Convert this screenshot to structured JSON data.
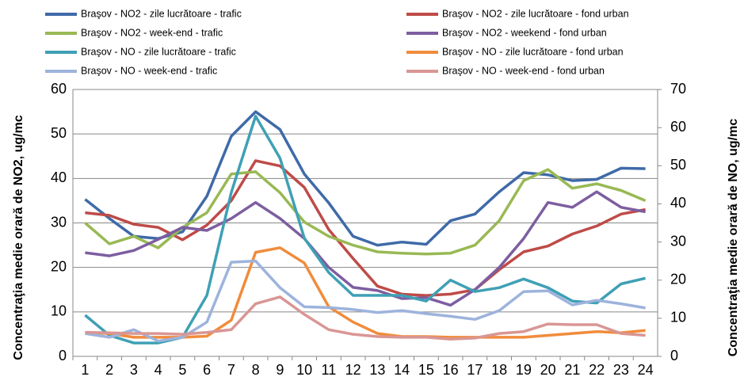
{
  "chart_data": {
    "type": "line",
    "categories": [
      "1",
      "2",
      "3",
      "4",
      "5",
      "6",
      "7",
      "8",
      "9",
      "10",
      "11",
      "12",
      "13",
      "14",
      "15",
      "16",
      "17",
      "18",
      "19",
      "20",
      "21",
      "22",
      "23",
      "24"
    ],
    "ylabel": "Concentraţia medie orară de NO2, ug/mc",
    "y2label": "Concentraţia medie orară de NO, ug/mc",
    "ylim": [
      0,
      60
    ],
    "yticks": [
      0,
      10,
      20,
      30,
      40,
      50,
      60
    ],
    "y2lim": [
      0,
      70
    ],
    "y2ticks": [
      0,
      10,
      20,
      30,
      40,
      50,
      60,
      70
    ],
    "grid": true,
    "series": [
      {
        "name": "Braşov - NO2 - zile lucrătoare - trafic",
        "color": "#3f6aa8",
        "values": [
          35.3,
          31,
          27,
          26.5,
          28,
          36,
          49.5,
          55,
          51,
          41,
          34.5,
          27,
          25,
          25.7,
          25.2,
          30.5,
          32,
          37,
          41.3,
          40.8,
          39.5,
          39.8,
          42.3,
          42.2
        ]
      },
      {
        "name": "Braşov - NO2 - zile lucrătoare - fond urban",
        "color": "#be4b48",
        "values": [
          32.3,
          31.7,
          29.7,
          29,
          26.2,
          29.5,
          35,
          44,
          42.8,
          38,
          28.5,
          22,
          15.8,
          14,
          13.7,
          14,
          15,
          19.5,
          23.5,
          24.8,
          27.5,
          29.3,
          32,
          33
        ]
      },
      {
        "name": "Braşov - NO2 - week-end - trafic",
        "color": "#98b954",
        "values": [
          30,
          25.3,
          27,
          24.4,
          29,
          32.3,
          41,
          41.5,
          36.8,
          30.2,
          27,
          25,
          23.5,
          23.2,
          23,
          23.2,
          25,
          30.5,
          39.5,
          42,
          37.8,
          38.8,
          37.3,
          35
        ]
      },
      {
        "name": "Braşov - NO2 - weekend - fond urban",
        "color": "#7d5ea0",
        "values": [
          23.3,
          22.6,
          23.8,
          26.3,
          29,
          28.3,
          31,
          34.6,
          31,
          26.5,
          20,
          15.5,
          14.8,
          13,
          13.2,
          11.5,
          15,
          20,
          26.5,
          34.6,
          33.5,
          37,
          33.5,
          32.5
        ]
      },
      {
        "name": "Braşov - NO - zile lucrătoare - trafic",
        "color": "#3fa0b5",
        "axis": "y2",
        "values": [
          10.8,
          5.5,
          3.5,
          3.5,
          5,
          16,
          43,
          63,
          52,
          31,
          22,
          16,
          16,
          16,
          14.5,
          20,
          17,
          18,
          20.3,
          18,
          14.5,
          14,
          19,
          20.5
        ]
      },
      {
        "name": "Braşov - NO - zile lucrătoare - fond urban",
        "color": "#f08c3c",
        "axis": "y2",
        "values": [
          6.3,
          6,
          5,
          5,
          5,
          5.3,
          9.5,
          27.3,
          28.5,
          24.5,
          13,
          9,
          6,
          5.2,
          5.2,
          5,
          5,
          5,
          5,
          5.5,
          6,
          6.5,
          6.2,
          6.8
        ]
      },
      {
        "name": "Braşov - NO - week-end - trafic",
        "color": "#9db3dc",
        "axis": "y2",
        "values": [
          6,
          5,
          7,
          4,
          5,
          9,
          24.7,
          25,
          18,
          13,
          12.8,
          12.3,
          11.5,
          12,
          11.2,
          10.5,
          9.7,
          12,
          17,
          17.2,
          13.5,
          14.7,
          13.8,
          12.7
        ]
      },
      {
        "name": "Braşov - NO - week-end - fond urban",
        "color": "#d99694",
        "axis": "y2",
        "values": [
          6.3,
          6.2,
          6,
          6,
          5.8,
          6.3,
          7,
          13.8,
          15.6,
          11,
          7,
          5.8,
          5.2,
          5,
          5,
          4.5,
          4.8,
          6,
          6.5,
          8.5,
          8.3,
          8.3,
          6,
          5.5
        ]
      }
    ]
  }
}
